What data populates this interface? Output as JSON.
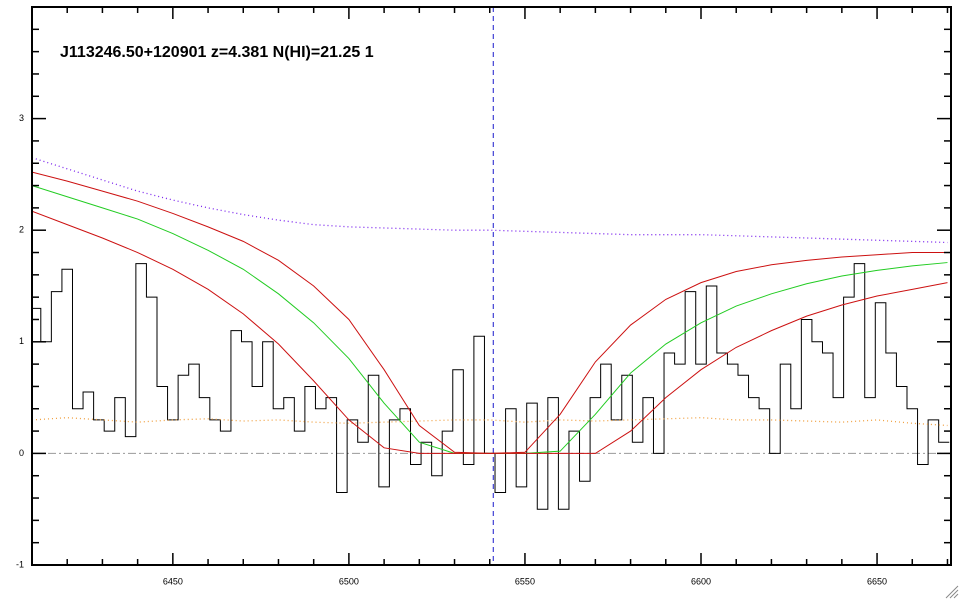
{
  "chart_data": {
    "type": "spectrum",
    "title": "J113246.50+120901 z=4.381 N(HI)=21.25 1",
    "xlim": [
      6410,
      6671
    ],
    "ylim": [
      -1,
      4
    ],
    "xticks": [
      6450,
      6500,
      6550,
      6600,
      6650
    ],
    "yticks": [
      -1,
      0,
      1,
      2,
      3
    ],
    "xminorticks": [
      6420,
      6430,
      6440,
      6460,
      6470,
      6480,
      6490,
      6510,
      6520,
      6530,
      6540,
      6560,
      6570,
      6580,
      6590,
      6610,
      6620,
      6630,
      6640,
      6660,
      6670
    ],
    "yminorticks": [
      -0.8,
      -0.6,
      -0.4,
      -0.2,
      0.2,
      0.4,
      0.6,
      0.8,
      1.2,
      1.4,
      1.6,
      1.8,
      2.2,
      2.4,
      2.6,
      2.8,
      3.2,
      3.4,
      3.6,
      3.8
    ],
    "reference_lines": [
      {
        "axis": "x",
        "value": 6541,
        "color": "#1a1acc",
        "style": "dashed"
      },
      {
        "axis": "y",
        "value": 0,
        "color": "#999999",
        "style": "dashdot"
      }
    ],
    "series": [
      {
        "name": "flux",
        "style": "step",
        "color": "#000000",
        "x": [
          6411,
          6414,
          6417,
          6420,
          6423,
          6426,
          6429,
          6432,
          6435,
          6438,
          6441,
          6444,
          6447,
          6450,
          6453,
          6456,
          6459,
          6462,
          6465,
          6468,
          6471,
          6474,
          6477,
          6480,
          6483,
          6486,
          6489,
          6492,
          6495,
          6498,
          6501,
          6504,
          6507,
          6510,
          6513,
          6516,
          6519,
          6522,
          6525,
          6528,
          6531,
          6534,
          6537,
          6540,
          6543,
          6546,
          6549,
          6552,
          6555,
          6558,
          6561,
          6564,
          6567,
          6570,
          6573,
          6576,
          6579,
          6582,
          6585,
          6588,
          6591,
          6594,
          6597,
          6600,
          6603,
          6606,
          6609,
          6612,
          6615,
          6618,
          6621,
          6624,
          6627,
          6630,
          6633,
          6636,
          6639,
          6642,
          6645,
          6648,
          6651,
          6654,
          6657,
          6660,
          6663,
          6666,
          6669
        ],
        "values": [
          1.3,
          1.0,
          1.45,
          1.65,
          0.4,
          0.55,
          0.3,
          0.2,
          0.5,
          0.15,
          1.7,
          1.4,
          0.6,
          0.3,
          0.7,
          0.8,
          0.5,
          0.3,
          0.2,
          1.1,
          1.0,
          0.6,
          1.0,
          0.4,
          0.5,
          0.2,
          0.6,
          0.4,
          0.5,
          -0.35,
          0.3,
          0.1,
          0.7,
          -0.3,
          0.3,
          0.4,
          -0.1,
          0.1,
          -0.2,
          0.2,
          0.75,
          -0.1,
          1.05,
          0.0,
          -0.35,
          0.4,
          -0.3,
          0.45,
          -0.5,
          0.5,
          -0.5,
          0.2,
          -0.25,
          0.5,
          0.8,
          0.3,
          0.7,
          0.1,
          0.5,
          0.0,
          0.9,
          0.8,
          1.45,
          0.8,
          1.5,
          0.9,
          0.8,
          0.7,
          0.5,
          0.4,
          0.0,
          0.8,
          0.4,
          1.2,
          1.0,
          0.9,
          0.5,
          1.4,
          1.7,
          0.5,
          1.35,
          0.9,
          0.6,
          0.4,
          -0.1,
          0.3,
          0.1
        ]
      },
      {
        "name": "continuum",
        "style": "dotted",
        "color": "#7a22ee",
        "x": [
          6410,
          6420,
          6430,
          6440,
          6450,
          6460,
          6470,
          6480,
          6490,
          6500,
          6510,
          6520,
          6530,
          6540,
          6550,
          6560,
          6570,
          6580,
          6590,
          6600,
          6610,
          6620,
          6630,
          6640,
          6650,
          6660,
          6670
        ],
        "values": [
          2.65,
          2.55,
          2.45,
          2.35,
          2.27,
          2.2,
          2.14,
          2.09,
          2.05,
          2.03,
          2.02,
          2.01,
          2.0,
          2.0,
          1.99,
          1.98,
          1.97,
          1.96,
          1.96,
          1.96,
          1.95,
          1.94,
          1.93,
          1.92,
          1.91,
          1.9,
          1.89
        ]
      },
      {
        "name": "error",
        "style": "dotted",
        "color": "#f0a040",
        "x": [
          6410,
          6420,
          6430,
          6440,
          6450,
          6460,
          6470,
          6480,
          6490,
          6500,
          6510,
          6520,
          6530,
          6540,
          6550,
          6560,
          6570,
          6580,
          6590,
          6600,
          6610,
          6620,
          6630,
          6640,
          6650,
          6660,
          6670
        ],
        "values": [
          0.3,
          0.32,
          0.3,
          0.28,
          0.3,
          0.31,
          0.29,
          0.3,
          0.28,
          0.27,
          0.28,
          0.29,
          0.3,
          0.3,
          0.28,
          0.3,
          0.29,
          0.3,
          0.31,
          0.32,
          0.3,
          0.3,
          0.29,
          0.28,
          0.3,
          0.27,
          0.25
        ]
      },
      {
        "name": "model",
        "style": "solid",
        "color": "#22cc22",
        "x": [
          6410,
          6420,
          6430,
          6440,
          6450,
          6460,
          6470,
          6480,
          6490,
          6500,
          6510,
          6520,
          6530,
          6540,
          6550,
          6560,
          6570,
          6580,
          6590,
          6600,
          6610,
          6620,
          6630,
          6640,
          6650,
          6660,
          6670
        ],
        "values": [
          2.4,
          2.3,
          2.2,
          2.1,
          1.97,
          1.82,
          1.65,
          1.43,
          1.17,
          0.85,
          0.45,
          0.1,
          0.0,
          0,
          0,
          0.02,
          0.35,
          0.72,
          0.98,
          1.17,
          1.32,
          1.43,
          1.52,
          1.59,
          1.64,
          1.68,
          1.71
        ]
      },
      {
        "name": "model-upper",
        "style": "solid",
        "color": "#cc1111",
        "x": [
          6410,
          6420,
          6430,
          6440,
          6450,
          6460,
          6470,
          6480,
          6490,
          6500,
          6510,
          6520,
          6530,
          6540,
          6550,
          6560,
          6570,
          6580,
          6590,
          6600,
          6610,
          6620,
          6630,
          6640,
          6650,
          6660,
          6670
        ],
        "values": [
          2.52,
          2.44,
          2.35,
          2.26,
          2.15,
          2.03,
          1.9,
          1.73,
          1.5,
          1.2,
          0.75,
          0.25,
          0.01,
          0,
          0.01,
          0.35,
          0.82,
          1.15,
          1.38,
          1.53,
          1.63,
          1.69,
          1.73,
          1.76,
          1.78,
          1.8,
          1.8
        ]
      },
      {
        "name": "model-lower",
        "style": "solid",
        "color": "#cc1111",
        "x": [
          6410,
          6420,
          6430,
          6440,
          6450,
          6460,
          6470,
          6480,
          6490,
          6500,
          6510,
          6520,
          6530,
          6540,
          6550,
          6560,
          6570,
          6580,
          6590,
          6600,
          6610,
          6620,
          6630,
          6640,
          6650,
          6660,
          6670
        ],
        "values": [
          2.17,
          2.05,
          1.93,
          1.8,
          1.65,
          1.47,
          1.25,
          0.98,
          0.65,
          0.3,
          0.05,
          0,
          0,
          0,
          0,
          0,
          0,
          0.2,
          0.5,
          0.75,
          0.95,
          1.1,
          1.23,
          1.33,
          1.41,
          1.47,
          1.53
        ]
      }
    ]
  }
}
